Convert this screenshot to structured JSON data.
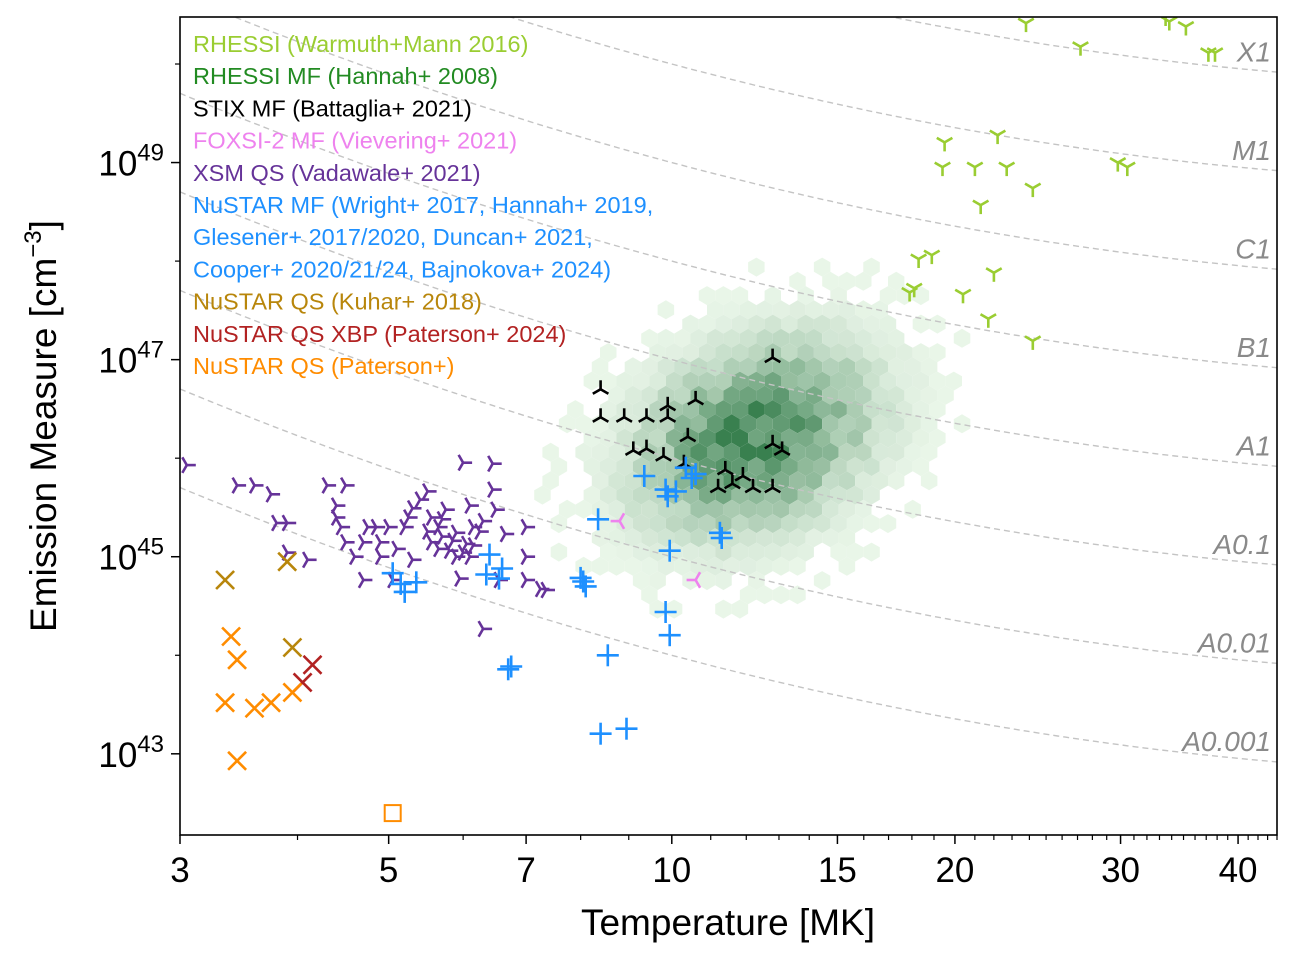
{
  "chart_data": {
    "type": "scatter",
    "xlabel": "Temperature [MK]",
    "ylabel_main": "Emission Measure [cm",
    "ylabel_exp": "−3",
    "ylabel_close": "]",
    "x_scale": "log",
    "y_scale": "log",
    "xlim": [
      3,
      44
    ],
    "ylim": [
      1.5e+42,
      3e+50
    ],
    "x_ticks": [
      {
        "value": 3,
        "label": "3"
      },
      {
        "value": 5,
        "label": "5"
      },
      {
        "value": 7,
        "label": "7"
      },
      {
        "value": 10,
        "label": "10"
      },
      {
        "value": 15,
        "label": "15"
      },
      {
        "value": 20,
        "label": "20"
      },
      {
        "value": 30,
        "label": "30"
      },
      {
        "value": 40,
        "label": "40"
      }
    ],
    "y_ticks": [
      {
        "value": 1e+43,
        "base": "10",
        "exp": "43"
      },
      {
        "value": 1e+45,
        "base": "10",
        "exp": "45"
      },
      {
        "value": 1e+47,
        "base": "10",
        "exp": "47"
      },
      {
        "value": 1e+49,
        "base": "10",
        "exp": "49"
      }
    ],
    "goes_classes": [
      {
        "label": "X1",
        "flux": 0.0001
      },
      {
        "label": "M1",
        "flux": 1e-05
      },
      {
        "label": "C1",
        "flux": 1e-06
      },
      {
        "label": "B1",
        "flux": 1e-07
      },
      {
        "label": "A1",
        "flux": 1e-08
      },
      {
        "label": "A0.1",
        "flux": 1e-09
      },
      {
        "label": "A0.01",
        "flux": 1e-10
      },
      {
        "label": "A0.001",
        "flux": 1e-11
      }
    ],
    "legend_position": "top-left",
    "legend": [
      {
        "label": "RHESSI (Warmuth+Mann 2016)",
        "color": "#9acd32"
      },
      {
        "label": "RHESSI MF (Hannah+ 2008)",
        "color": "#228b22"
      },
      {
        "label": "STIX MF (Battaglia+ 2021)",
        "color": "#000000"
      },
      {
        "label": "FOXSI-2 MF (Vievering+ 2021)",
        "color": "#ee82ee"
      },
      {
        "label": "XSM QS (Vadawale+ 2021)",
        "color": "#663399"
      },
      {
        "label": "NuSTAR MF (Wright+ 2017, Hannah+ 2019,",
        "color": "#1e90ff"
      },
      {
        "label": "Glesener+ 2017/2020, Duncan+ 2021,",
        "color": "#1e90ff"
      },
      {
        "label": "Cooper+ 2020/21/24, Bajnokova+ 2024)",
        "color": "#1e90ff"
      },
      {
        "label": "NuSTAR QS (Kuhar+ 2018)",
        "color": "#b8860b"
      },
      {
        "label": "NuSTAR QS XBP (Paterson+ 2024)",
        "color": "#b22222"
      },
      {
        "label": "NuSTAR QS (Paterson+)",
        "color": "#ff8c00"
      }
    ],
    "series": [
      {
        "name": "RHESSI (Warmuth+Mann 2016)",
        "marker": "tri_down",
        "color": "#9acd32",
        "points": [
          [
            23.8,
            2.6e+50
          ],
          [
            33.5,
            3e+50
          ],
          [
            33.8,
            2.7e+50
          ],
          [
            35.2,
            2.4e+50
          ],
          [
            37.2,
            1.3e+50
          ],
          [
            37.8,
            1.3e+50
          ],
          [
            27.2,
            1.5e+50
          ],
          [
            19.5,
            1.6e+49
          ],
          [
            19.4,
            9e+48
          ],
          [
            21.0,
            9e+48
          ],
          [
            22.2,
            1.9e+49
          ],
          [
            22.7,
            9e+48
          ],
          [
            24.2,
            5.5e+48
          ],
          [
            29.8,
            1e+49
          ],
          [
            30.5,
            9e+48
          ],
          [
            21.3,
            3.7e+48
          ],
          [
            18.9,
            1.15e+48
          ],
          [
            18.3,
            1.05e+48
          ],
          [
            17.9,
            4.8e+47
          ],
          [
            18.1,
            5.3e+47
          ],
          [
            20.4,
            4.6e+47
          ],
          [
            22.0,
            7.6e+47
          ],
          [
            21.7,
            2.6e+47
          ],
          [
            24.2,
            1.55e+47
          ]
        ]
      },
      {
        "name": "STIX MF (Battaglia+ 2021)",
        "marker": "tri_up",
        "color": "#000000",
        "points": [
          [
            8.4,
            5e+46
          ],
          [
            8.4,
            2.6e+46
          ],
          [
            8.9,
            2.6e+46
          ],
          [
            9.4,
            2.6e+46
          ],
          [
            9.9,
            2.6e+46
          ],
          [
            9.9,
            3.4e+46
          ],
          [
            10.6,
            3.9e+46
          ],
          [
            12.8,
            1.05e+47
          ],
          [
            10.4,
            1.65e+46
          ],
          [
            9.4,
            1.25e+46
          ],
          [
            9.1,
            1.2e+46
          ],
          [
            9.8,
            1.05e+46
          ],
          [
            10.3,
            8.8e+45
          ],
          [
            12.8,
            1.4e+46
          ],
          [
            13.1,
            1.2e+46
          ],
          [
            11.4,
            7.6e+45
          ],
          [
            11.9,
            6.6e+45
          ],
          [
            11.2,
            5e+45
          ],
          [
            12.2,
            5e+45
          ],
          [
            12.8,
            5e+45
          ],
          [
            11.6,
            5.5e+45
          ]
        ]
      },
      {
        "name": "FOXSI-2 MF (Vievering+ 2021)",
        "marker": "tri_left",
        "color": "#ee82ee",
        "points": [
          [
            8.8,
            2.3e+45
          ],
          [
            10.6,
            5.8e+44
          ]
        ]
      },
      {
        "name": "XSM QS (Vadawale+ 2021)",
        "marker": "tri_right",
        "color": "#663399",
        "points": [
          [
            3.05,
            8.5e+45
          ],
          [
            3.45,
            5.3e+45
          ],
          [
            3.6,
            5.3e+45
          ],
          [
            3.75,
            4.3e+45
          ],
          [
            3.8,
            2.2e+45
          ],
          [
            3.9,
            2.2e+45
          ],
          [
            3.9,
            1.1e+45
          ],
          [
            4.3,
            5.3e+45
          ],
          [
            4.5,
            5.3e+45
          ],
          [
            4.4,
            3.3e+45
          ],
          [
            4.4,
            2.5e+45
          ],
          [
            4.45,
            2e+45
          ],
          [
            4.5,
            1.4e+45
          ],
          [
            4.75,
            2e+45
          ],
          [
            4.85,
            2e+45
          ],
          [
            5.0,
            2e+45
          ],
          [
            5.2,
            2e+45
          ],
          [
            4.7,
            1.4e+45
          ],
          [
            4.9,
            1.4e+45
          ],
          [
            5.1,
            1.2e+45
          ],
          [
            4.9,
            1e+45
          ],
          [
            4.6,
            1e+45
          ],
          [
            4.7,
            5.8e+44
          ],
          [
            5.05,
            5.8e+44
          ],
          [
            5.5,
            4.6e+45
          ],
          [
            5.4,
            3.8e+45
          ],
          [
            5.3,
            3.1e+45
          ],
          [
            5.25,
            2.5e+45
          ],
          [
            5.55,
            2.5e+45
          ],
          [
            5.65,
            2e+45
          ],
          [
            5.5,
            1.8e+45
          ],
          [
            5.7,
            1.6e+45
          ],
          [
            5.55,
            1.4e+45
          ],
          [
            5.65,
            1.2e+45
          ],
          [
            5.8,
            1.15e+45
          ],
          [
            5.9,
            1e+45
          ],
          [
            6.0,
            1.1e+45
          ],
          [
            6.05,
            1.35e+45
          ],
          [
            5.85,
            1.45e+45
          ],
          [
            5.9,
            1.75e+45
          ],
          [
            6.15,
            1.3e+45
          ],
          [
            6.25,
            1.8e+45
          ],
          [
            5.95,
            6e+44
          ],
          [
            6.1,
            1e+45
          ],
          [
            5.75,
            3e+45
          ],
          [
            5.7,
            2.4e+45
          ],
          [
            6.0,
            9e+45
          ],
          [
            6.45,
            8.8e+45
          ],
          [
            6.1,
            3.3e+45
          ],
          [
            6.15,
            2e+45
          ],
          [
            6.3,
            2.3e+45
          ],
          [
            6.5,
            3e+45
          ],
          [
            6.65,
            1.7e+45
          ],
          [
            6.45,
            4.8e+45
          ],
          [
            7.0,
            2e+45
          ],
          [
            7.0,
            1e+45
          ],
          [
            7.0,
            5.8e+44
          ],
          [
            6.55,
            5.8e+44
          ],
          [
            7.25,
            4.7e+44
          ],
          [
            7.35,
            4.6e+44
          ],
          [
            6.3,
            1.85e+44
          ],
          [
            5.3,
            9.3e+44
          ],
          [
            4.1,
            9.3e+44
          ]
        ]
      },
      {
        "name": "NuSTAR MF",
        "marker": "plus",
        "color": "#1e90ff",
        "points": [
          [
            5.05,
            6.8e+44
          ],
          [
            5.15,
            5.3e+44
          ],
          [
            5.2,
            4.4e+44
          ],
          [
            5.35,
            5.5e+44
          ],
          [
            6.4,
            1.05e+45
          ],
          [
            6.35,
            6.6e+44
          ],
          [
            6.55,
            6e+44
          ],
          [
            6.6,
            7.6e+44
          ],
          [
            6.7,
            7.2e+43
          ],
          [
            6.75,
            7.7e+43
          ],
          [
            8.0,
            6.1e+44
          ],
          [
            8.05,
            5.6e+44
          ],
          [
            8.1,
            5e+44
          ],
          [
            8.35,
            2.4e+45
          ],
          [
            9.35,
            6.6e+45
          ],
          [
            9.85,
            4.8e+45
          ],
          [
            9.9,
            4.1e+45
          ],
          [
            10.1,
            4.6e+45
          ],
          [
            10.35,
            8e+45
          ],
          [
            10.6,
            6.9e+45
          ],
          [
            10.5,
            6.3e+45
          ],
          [
            11.25,
            1.75e+45
          ],
          [
            11.3,
            1.55e+45
          ],
          [
            9.95,
            1.15e+45
          ],
          [
            9.85,
            2.75e+44
          ],
          [
            9.95,
            1.6e+44
          ],
          [
            8.55,
            1e+44
          ],
          [
            8.4,
            1.6e+43
          ],
          [
            8.95,
            1.8e+43
          ]
        ]
      },
      {
        "name": "NuSTAR QS (Kuhar+ 2018)",
        "marker": "x",
        "color": "#b8860b",
        "points": [
          [
            3.35,
            5.8e+44
          ],
          [
            3.9,
            8.9e+44
          ],
          [
            3.95,
            1.2e+44
          ]
        ]
      },
      {
        "name": "NuSTAR QS XBP (Paterson+ 2024)",
        "marker": "x",
        "color": "#b22222",
        "points": [
          [
            4.15,
            8e+43
          ],
          [
            4.05,
            5.3e+43
          ]
        ]
      },
      {
        "name": "NuSTAR QS (Paterson+)",
        "marker": "x",
        "color": "#ff8c00",
        "points": [
          [
            3.4,
            1.55e+44
          ],
          [
            3.45,
            9e+43
          ],
          [
            3.35,
            3.3e+43
          ],
          [
            3.6,
            2.9e+43
          ],
          [
            3.75,
            3.3e+43
          ],
          [
            3.95,
            4.2e+43
          ],
          [
            3.45,
            8.5e+42
          ]
        ]
      },
      {
        "name": "NuSTAR QS (Paterson+) upper",
        "marker": "square",
        "color": "#ff8c00",
        "points": [
          [
            5.05,
            2.5e+42
          ]
        ]
      }
    ],
    "density_cloud": {
      "name": "RHESSI MF (Hannah+ 2008)",
      "color": "#228b22",
      "center": [
        12.3,
        1.6e+46
      ],
      "spread_log_t": 0.07,
      "spread_log_em": 0.55,
      "max_count": 1
    }
  }
}
